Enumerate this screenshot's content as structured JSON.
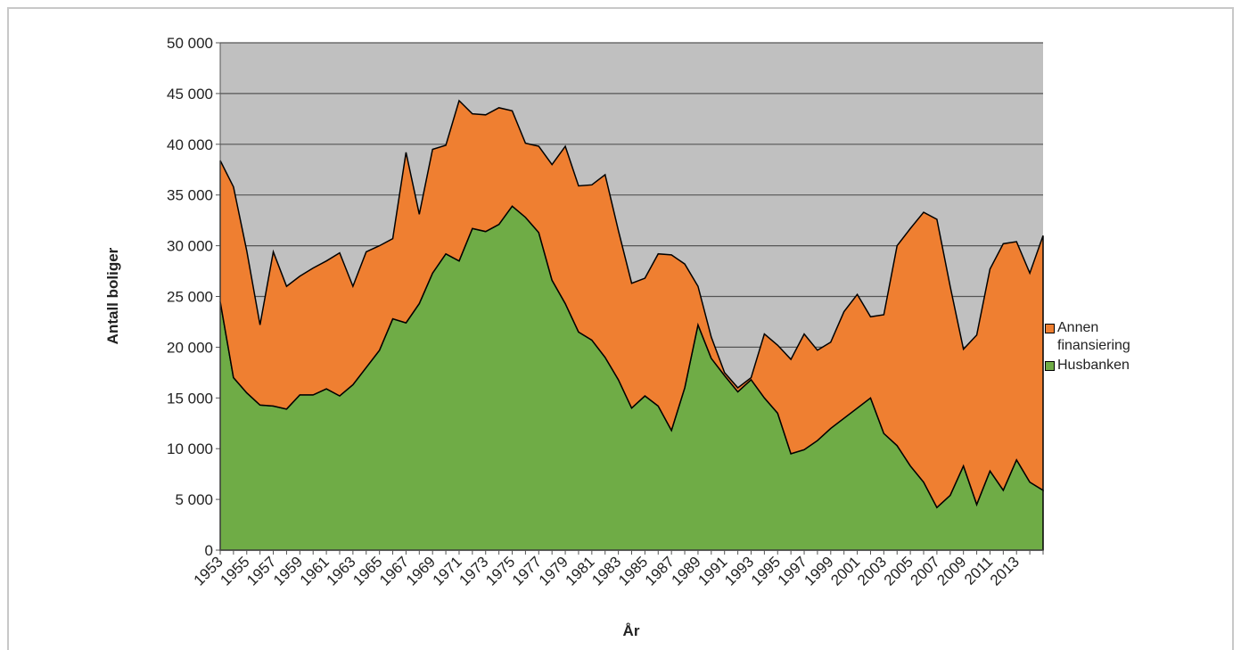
{
  "chart_data": {
    "type": "stacked-area",
    "y_label": "Antall boliger",
    "x_label": "År",
    "categories": [
      "1953",
      null,
      "1955",
      null,
      "1957",
      null,
      "1959",
      null,
      "1961",
      null,
      "1963",
      null,
      "1965",
      null,
      "1967",
      null,
      "1969",
      null,
      "1971",
      null,
      "1973",
      null,
      "1975",
      null,
      "1977",
      null,
      "1979",
      null,
      "1981",
      null,
      "1983",
      null,
      "1985",
      null,
      "1987",
      null,
      "1989",
      null,
      "1991",
      null,
      "1993",
      null,
      "1995",
      null,
      "1997",
      null,
      "1999",
      null,
      "2001",
      null,
      "2003",
      null,
      "2005",
      null,
      "2007",
      null,
      "2009",
      null,
      "2011",
      null,
      "2013",
      null,
      null
    ],
    "series": [
      {
        "name": "Husbanken",
        "color": "#6fac46",
        "values": [
          24500,
          17000,
          15500,
          14300,
          14200,
          13900,
          15300,
          15300,
          15900,
          15200,
          16300,
          18000,
          19700,
          22800,
          22400,
          24300,
          27300,
          29200,
          28500,
          31700,
          31400,
          32100,
          33900,
          32800,
          31300,
          26600,
          24300,
          21500,
          20700,
          19000,
          16800,
          14000,
          15200,
          14200,
          11800,
          16000,
          22200,
          18900,
          17200,
          15600,
          16800,
          15000,
          13500,
          9500,
          9900,
          10800,
          12000,
          13000,
          14000,
          15000,
          11500,
          10300,
          8300,
          6700,
          4200,
          5400,
          8300,
          4500,
          7800,
          5900,
          8900,
          6700,
          5900
        ]
      },
      {
        "name": "Annen finansiering",
        "color": "#ef7f31",
        "values": [
          13900,
          18800,
          14000,
          7900,
          15200,
          12100,
          11700,
          12500,
          12600,
          14100,
          9700,
          11400,
          10300,
          7900,
          16800,
          8800,
          12200,
          10700,
          15800,
          11300,
          11500,
          11500,
          9400,
          7300,
          8500,
          11400,
          15500,
          14400,
          15300,
          18000,
          14700,
          12300,
          11600,
          15000,
          17300,
          12200,
          3800,
          2100,
          300,
          400,
          200,
          6300,
          6700,
          9300,
          11400,
          8900,
          8500,
          10500,
          11200,
          8000,
          11700,
          19700,
          23400,
          26600,
          28400,
          20600,
          11500,
          16700,
          19900,
          24300,
          21500,
          20600,
          25100
        ]
      }
    ],
    "ylim": [
      0,
      50000
    ],
    "yticks": [
      0,
      {
        "value": 5000,
        "label": "5 000"
      },
      {
        "value": 10000,
        "label": "10 000"
      },
      {
        "value": 15000,
        "label": "15 000"
      },
      {
        "value": 20000,
        "label": "20 000"
      },
      {
        "value": 25000,
        "label": "25 000"
      },
      {
        "value": 30000,
        "label": "30 000"
      },
      {
        "value": 35000,
        "label": "35 000"
      },
      {
        "value": 40000,
        "label": "40 000"
      },
      {
        "value": 45000,
        "label": "45 000"
      },
      {
        "value": 50000,
        "label": "50 000"
      }
    ],
    "grid": true,
    "plot_background": "#c0c0c0",
    "legend": "right"
  }
}
